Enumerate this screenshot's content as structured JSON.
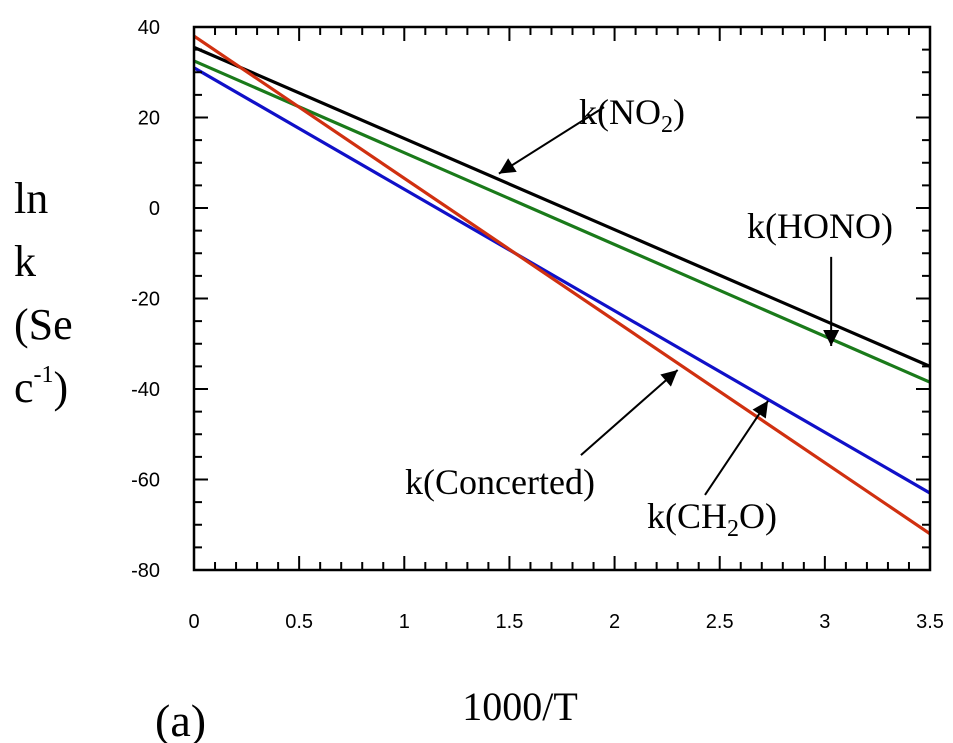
{
  "chart_data": {
    "type": "line",
    "panel_label": "(a)",
    "xlabel": "1000/T",
    "ylabel_lines": [
      "ln",
      "k",
      "(Se",
      "c"
    ],
    "ylabel_sup": "-1",
    "ylabel_close": ")",
    "xlim": [
      0,
      3.5
    ],
    "ylim": [
      -80,
      40
    ],
    "x_ticks": [
      0,
      0.5,
      1,
      1.5,
      2,
      2.5,
      3,
      3.5
    ],
    "x_tick_labels": [
      "0",
      "0.5",
      "1",
      "1.5",
      "2",
      "2.5",
      "3",
      "3.5"
    ],
    "y_ticks": [
      40,
      20,
      0,
      -20,
      -40,
      -60,
      -80
    ],
    "y_tick_labels": [
      "40",
      "20",
      "0",
      "-20",
      "-40",
      "-60",
      "-80"
    ],
    "grid": false,
    "series": [
      {
        "name": "k(NO2)",
        "color": "#000000",
        "x": [
          0,
          3.5
        ],
        "y": [
          35.5,
          -35
        ]
      },
      {
        "name": "k(HONO)",
        "color": "#1a7a1a",
        "x": [
          0,
          3.5
        ],
        "y": [
          32.5,
          -38.5
        ]
      },
      {
        "name": "k(CH2O)",
        "color": "#1010c8",
        "x": [
          0,
          3.5
        ],
        "y": [
          31,
          -63
        ]
      },
      {
        "name": "k(Concerted)",
        "color": "#d03010",
        "x": [
          0,
          3.5
        ],
        "y": [
          38,
          -72
        ]
      }
    ],
    "annotations": [
      {
        "id": "no2",
        "pre": "k(NO",
        "sub": "2",
        "post": ")",
        "arrow_from": [
          1.95,
          22.3
        ],
        "arrow_to": [
          1.45,
          7.6
        ]
      },
      {
        "id": "hono",
        "pre": "k(HONO)",
        "sub": "",
        "post": "",
        "arrow_from": [
          3.03,
          -10.8
        ],
        "arrow_to": [
          3.03,
          -30.5
        ]
      },
      {
        "id": "concerted",
        "pre": "k(Concerted)",
        "sub": "",
        "post": "",
        "arrow_from": [
          1.84,
          -54.6
        ],
        "arrow_to": [
          2.3,
          -35.8
        ]
      },
      {
        "id": "ch2o",
        "pre": "k(CH",
        "sub": "2",
        "post": "O)",
        "arrow_from": [
          2.43,
          -63.4
        ],
        "arrow_to": [
          2.73,
          -42.6
        ]
      }
    ]
  }
}
